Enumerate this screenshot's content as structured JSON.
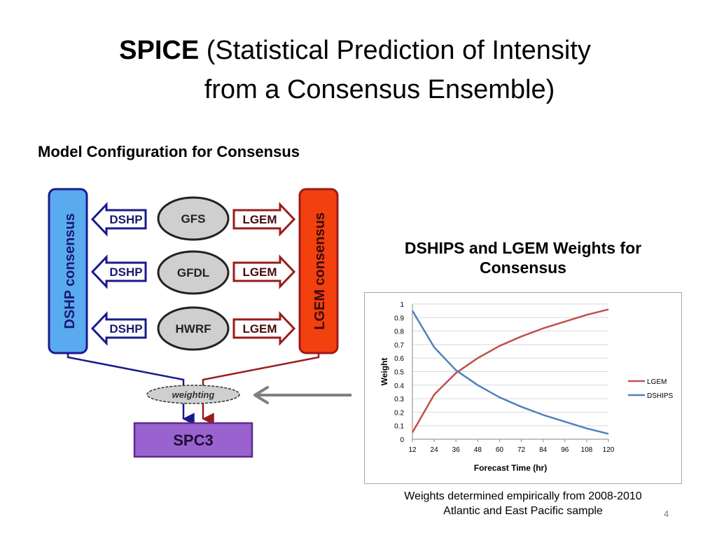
{
  "slide": {
    "title_bold": "SPICE",
    "title_rest_line1": " (Statistical Prediction of Intensity",
    "title_line2": "from a Consensus Ensemble)",
    "section_heading": "Model Configuration for Consensus",
    "chart_heading": "DSHIPS and LGEM Weights for Consensus",
    "chart_note_line1": "Weights determined empirically from 2008-2010",
    "chart_note_line2": "Atlantic and East Pacific sample",
    "page_number": "4"
  },
  "diagram": {
    "left_consensus_label": "DSHP consensus",
    "right_consensus_label": "LGEM consensus",
    "models": [
      "GFS",
      "GFDL",
      "HWRF"
    ],
    "left_arrow_label": "DSHP",
    "right_arrow_label": "LGEM",
    "weighting_label": "weighting",
    "output_label": "SPC3",
    "colors": {
      "left_box": "#5aaaf0",
      "right_box": "#f2400e",
      "left_arrow": "#1a1a8c",
      "right_arrow": "#9b1b1b",
      "model_oval": "#cfcfcf",
      "output_box": "#9a62cf",
      "pointer_arrow": "#7f7f7f"
    }
  },
  "chart_data": {
    "type": "line",
    "title": "",
    "xlabel": "Forecast Time (hr)",
    "ylabel": "Weight",
    "x": [
      12,
      24,
      36,
      48,
      60,
      72,
      84,
      96,
      108,
      120
    ],
    "ylim": [
      0,
      1
    ],
    "yticks": [
      0,
      0.1,
      0.2,
      0.3,
      0.4,
      0.5,
      0.6,
      0.7,
      0.8,
      0.9,
      1
    ],
    "grid": true,
    "legend": "right",
    "series": [
      {
        "name": "LGEM",
        "color": "#c0504d",
        "values": [
          0.05,
          0.33,
          0.49,
          0.6,
          0.69,
          0.76,
          0.82,
          0.87,
          0.92,
          0.96
        ]
      },
      {
        "name": "DSHIPS",
        "color": "#4f81bd",
        "values": [
          0.95,
          0.68,
          0.51,
          0.4,
          0.31,
          0.24,
          0.18,
          0.13,
          0.08,
          0.04
        ]
      }
    ]
  }
}
